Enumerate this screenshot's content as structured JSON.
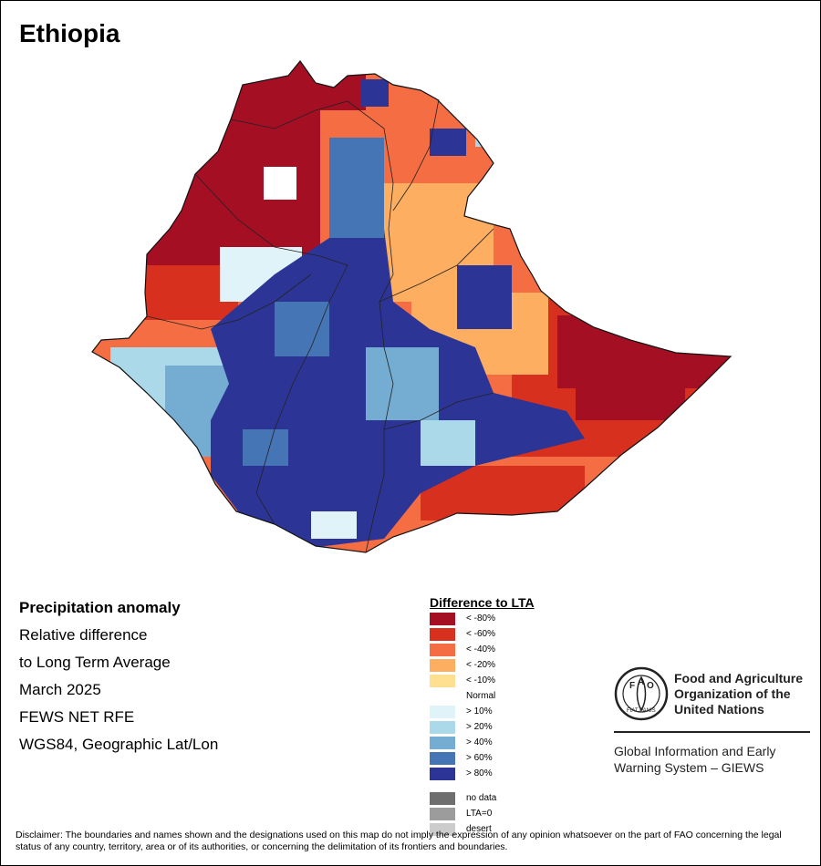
{
  "map": {
    "title": "Ethiopia"
  },
  "info": {
    "line1": "Precipitation anomaly",
    "line2": "Relative difference",
    "line3": "to Long Term Average",
    "line4": "March 2025",
    "line5": "FEWS NET RFE",
    "line6": "WGS84, Geographic Lat/Lon"
  },
  "legend": {
    "title": "Difference to LTA",
    "classes": [
      {
        "label": "< -80%",
        "color": "#a50f24"
      },
      {
        "label": "< -60%",
        "color": "#d7301f"
      },
      {
        "label": "< -40%",
        "color": "#f46d43"
      },
      {
        "label": "< -20%",
        "color": "#fdae61"
      },
      {
        "label": "< -10%",
        "color": "#fee090"
      },
      {
        "label": "Normal",
        "color": "#ffffff"
      },
      {
        "label": "> 10%",
        "color": "#e0f3f8"
      },
      {
        "label": "> 20%",
        "color": "#abd9e9"
      },
      {
        "label": "> 40%",
        "color": "#74add1"
      },
      {
        "label": "> 60%",
        "color": "#4575b4"
      },
      {
        "label": "> 80%",
        "color": "#2c3596"
      }
    ],
    "extra": [
      {
        "label": "no data",
        "color": "#6e6e6e"
      },
      {
        "label": "LTA=0",
        "color": "#9c9c9c"
      },
      {
        "label": "desert",
        "color": "#cccccc"
      }
    ]
  },
  "branding": {
    "org_line1": "Food and Agriculture",
    "org_line2": "Organization of the",
    "org_line3": "United Nations",
    "emblem_text": "FAO",
    "emblem_motto": "FIAT PANIS",
    "system_line1": "Global Information and Early",
    "system_line2": "Warning System – GIEWS"
  },
  "disclaimer": "Disclaimer: The boundaries and names shown and the designations used on this map do not imply the expression of any opinion whatsoever on the part of FAO concerning the legal status of any country, territory, area or of its authorities, or concerning the delimitation of its frontiers and boundaries."
}
